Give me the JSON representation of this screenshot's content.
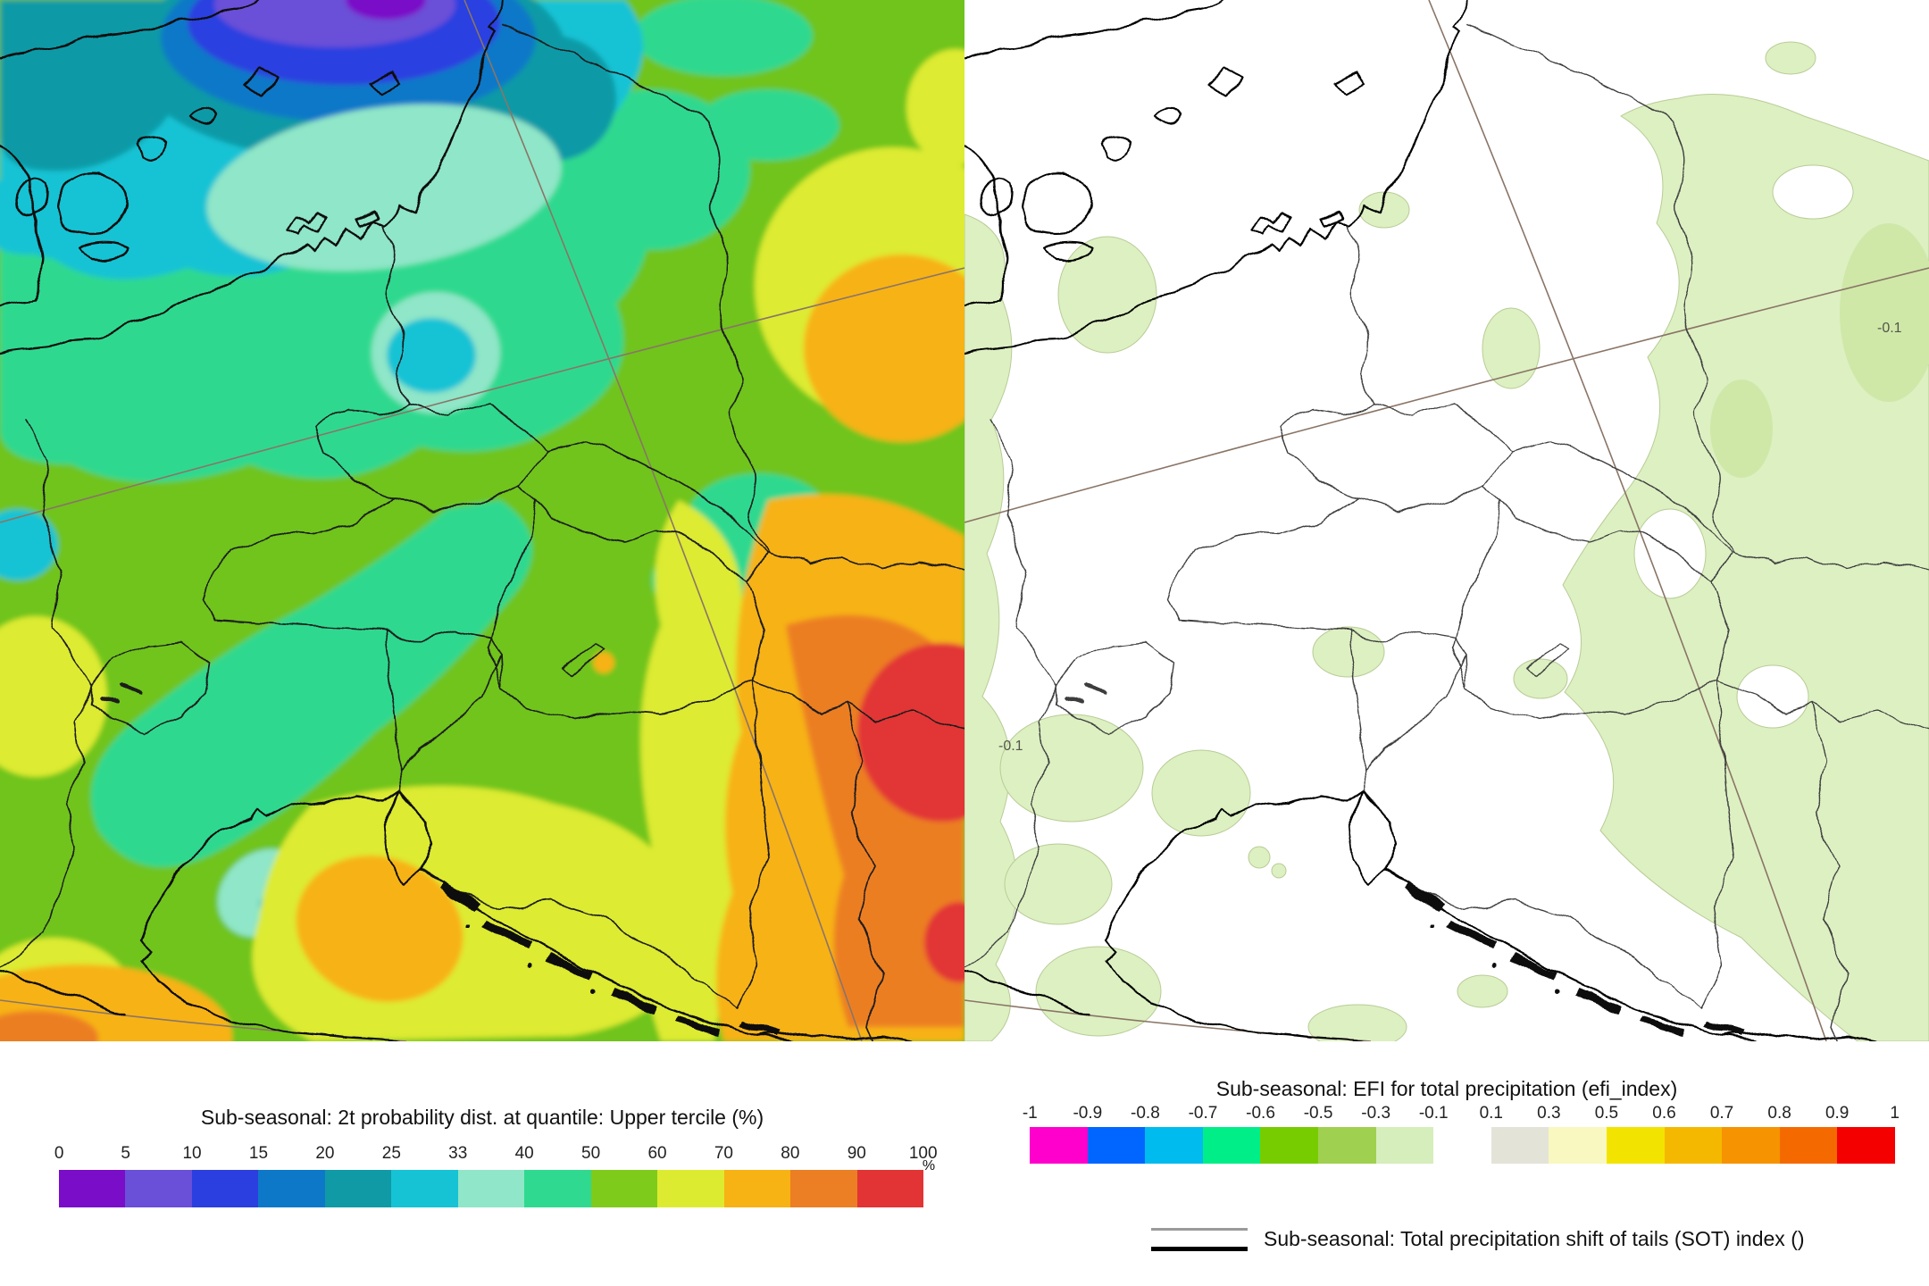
{
  "left_panel": {
    "title": "Sub-seasonal: 2t probability dist. at quantile: Upper tercile (%)",
    "unit_label": "%",
    "ticks": [
      "0",
      "5",
      "10",
      "15",
      "20",
      "25",
      "33",
      "40",
      "50",
      "60",
      "70",
      "80",
      "90",
      "100"
    ],
    "cells": [
      "#7A0DC8",
      "#6A4FD8",
      "#2B3FE0",
      "#0E78C8",
      "#0F9AA6",
      "#15C3D4",
      "#8FE6C8",
      "#2FD98F",
      "#7FCB1B",
      "#DDEB30",
      "#F7B213",
      "#EC7E23",
      "#E23434"
    ]
  },
  "right_panel": {
    "title": "Sub-seasonal: EFI for total precipitation (efi_index)",
    "ticks": [
      "-1",
      "-0.9",
      "-0.8",
      "-0.7",
      "-0.6",
      "-0.5",
      "-0.3",
      "-0.1",
      "0.1",
      "0.3",
      "0.5",
      "0.6",
      "0.7",
      "0.8",
      "0.9",
      "1"
    ],
    "cells": [
      "#FF00CC",
      "#0066FF",
      "#00BBEE",
      "#00EE88",
      "#77CC00",
      "#A0D050",
      "#D5EEBB",
      "",
      "#E3E3D8",
      "#F8F8C0",
      "#F2E400",
      "#F5B800",
      "#F59300",
      "#F56A00",
      "#F50000"
    ],
    "contour_label_1": "-0.1",
    "contour_label_2": "-0.1"
  },
  "sot_legend": {
    "label": "Sub-seasonal: Total precipitation shift of tails (SOT) index ()"
  }
}
